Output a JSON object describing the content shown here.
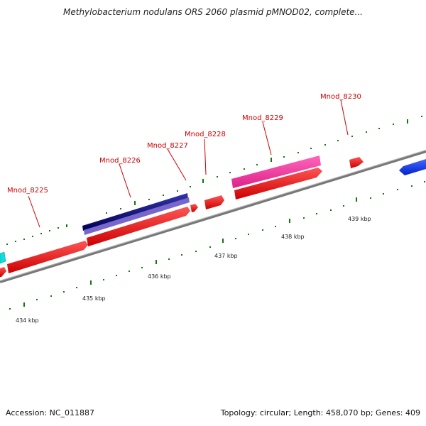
{
  "title": "Methylobacterium nodulans ORS 2060 plasmid pMNOD02, complete...",
  "footer": {
    "accession": "Accession: NC_011887",
    "topology": "Topology: circular; Length: 458,070 bp; Genes: 409"
  },
  "genes": [
    {
      "label": "Mnod_8225"
    },
    {
      "label": "Mnod_8226"
    },
    {
      "label": "Mnod_8227"
    },
    {
      "label": "Mnod_8228"
    },
    {
      "label": "Mnod_8229"
    },
    {
      "label": "Mnod_8230"
    }
  ],
  "kbp_labels": [
    "434 kbp",
    "435 kbp",
    "436 kbp",
    "437 kbp",
    "438 kbp",
    "439 kbp"
  ],
  "colors": {
    "forward_cds": "#ee1111",
    "navy_feature": "#111177",
    "lavender_feature": "#7766cc",
    "pink_feature": "#ee3399",
    "blue_feature": "#1133ee",
    "cyan_feature": "#11dddd",
    "backbone": "#888888",
    "tick": "#117711"
  }
}
